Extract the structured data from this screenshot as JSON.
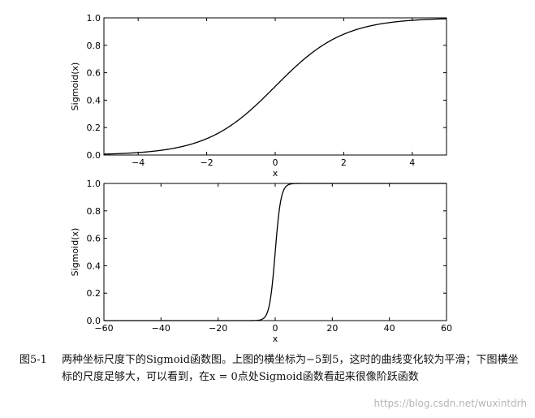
{
  "chart_data": [
    {
      "type": "line",
      "function": "sigmoid",
      "xlabel": "x",
      "ylabel": "Sigmoid(x)",
      "xlim": [
        -5,
        5
      ],
      "ylim": [
        0.0,
        1.0
      ],
      "xticks": [
        -4,
        -2,
        0,
        2,
        4
      ],
      "xtick_labels": [
        "−4",
        "−2",
        "0",
        "2",
        "4"
      ],
      "yticks": [
        0.0,
        0.2,
        0.4,
        0.6,
        0.8,
        1.0
      ],
      "ytick_labels": [
        "0.0",
        "0.2",
        "0.4",
        "0.6",
        "0.8",
        "1.0"
      ],
      "grid": false,
      "series": [
        {
          "x": [
            -5,
            -4,
            -3,
            -2,
            -1,
            0,
            1,
            2,
            3,
            4,
            5
          ],
          "y": [
            0.007,
            0.018,
            0.047,
            0.119,
            0.269,
            0.5,
            0.731,
            0.881,
            0.953,
            0.982,
            0.993
          ]
        }
      ]
    },
    {
      "type": "line",
      "function": "sigmoid",
      "xlabel": "x",
      "ylabel": "Sigmoid(x)",
      "xlim": [
        -60,
        60
      ],
      "ylim": [
        0.0,
        1.0
      ],
      "xticks": [
        -60,
        -40,
        -20,
        0,
        20,
        40,
        60
      ],
      "xtick_labels": [
        "−60",
        "−40",
        "−20",
        "0",
        "20",
        "40",
        "60"
      ],
      "yticks": [
        0.0,
        0.2,
        0.4,
        0.6,
        0.8,
        1.0
      ],
      "ytick_labels": [
        "0.0",
        "0.2",
        "0.4",
        "0.6",
        "0.8",
        "1.0"
      ],
      "grid": false,
      "series": [
        {
          "x": [
            -60,
            -10,
            -5,
            -3,
            -2,
            -1,
            0,
            1,
            2,
            3,
            5,
            10,
            60
          ],
          "y": [
            0.0,
            0.0,
            0.007,
            0.047,
            0.119,
            0.269,
            0.5,
            0.731,
            0.881,
            0.953,
            0.993,
            1.0,
            1.0
          ]
        }
      ]
    }
  ],
  "caption": {
    "label": "图5-1",
    "text": "两种坐标尺度下的Sigmoid函数图。上图的横坐标为−5到5，这时的曲线变化较为平滑；下图横坐标的尺度足够大，可以看到，在x = 0点处Sigmoid函数看起来很像阶跃函数"
  },
  "watermark": "https://blog.csdn.net/wuxintdrh",
  "colors": {
    "line": "#000000",
    "axis": "#000000",
    "background": "#ffffff"
  }
}
